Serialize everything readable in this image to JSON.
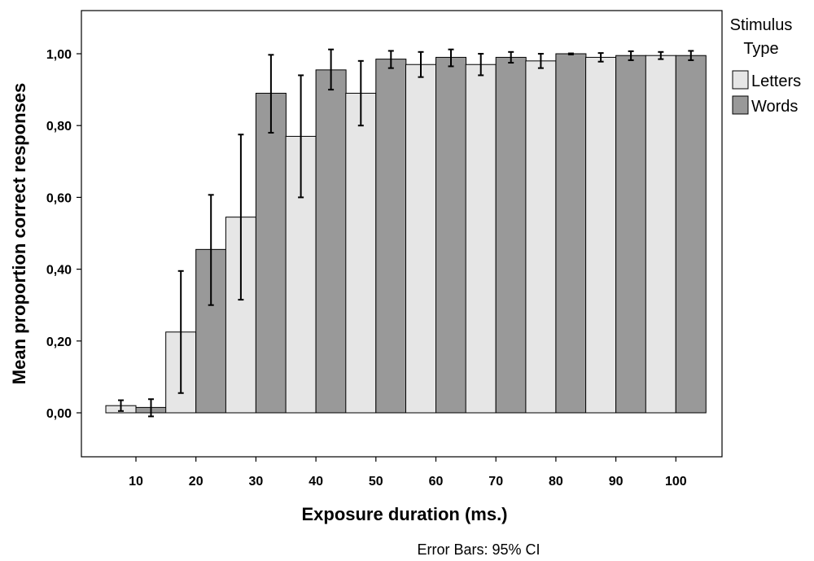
{
  "chart_data": {
    "type": "bar",
    "xlabel": "Exposure duration (ms.)",
    "ylabel": "Mean proportion correct responses",
    "categories": [
      "10",
      "20",
      "30",
      "40",
      "50",
      "60",
      "70",
      "80",
      "90",
      "100"
    ],
    "yticks": [
      0.0,
      0.2,
      0.4,
      0.6,
      0.8,
      1.0
    ],
    "ytick_labels": [
      "0,00",
      "0,20",
      "0,40",
      "0,60",
      "0,80",
      "1,00"
    ],
    "ylim": [
      -0.12,
      1.12
    ],
    "grid": false,
    "legend": {
      "title_line1": "Stimulus",
      "title_line2": "Type",
      "placement": "right"
    },
    "series": [
      {
        "name": "Letters",
        "color": "#e6e6e6",
        "values": [
          0.02,
          0.225,
          0.545,
          0.77,
          0.89,
          0.97,
          0.97,
          0.98,
          0.99,
          0.995
        ],
        "ci_low": [
          0.005,
          0.055,
          0.315,
          0.6,
          0.8,
          0.935,
          0.94,
          0.96,
          0.978,
          0.985
        ],
        "ci_high": [
          0.035,
          0.395,
          0.775,
          0.94,
          0.98,
          1.005,
          1.0,
          1.0,
          1.002,
          1.005
        ]
      },
      {
        "name": "Words",
        "color": "#999999",
        "values": [
          0.015,
          0.455,
          0.89,
          0.955,
          0.985,
          0.99,
          0.99,
          1.0,
          0.995,
          0.995
        ],
        "ci_low": [
          -0.01,
          0.3,
          0.78,
          0.9,
          0.96,
          0.965,
          0.975,
          0.998,
          0.982,
          0.982
        ],
        "ci_high": [
          0.038,
          0.607,
          0.997,
          1.012,
          1.008,
          1.012,
          1.005,
          1.001,
          1.007,
          1.008
        ]
      }
    ],
    "footnote": "Error Bars: 95% CI"
  }
}
